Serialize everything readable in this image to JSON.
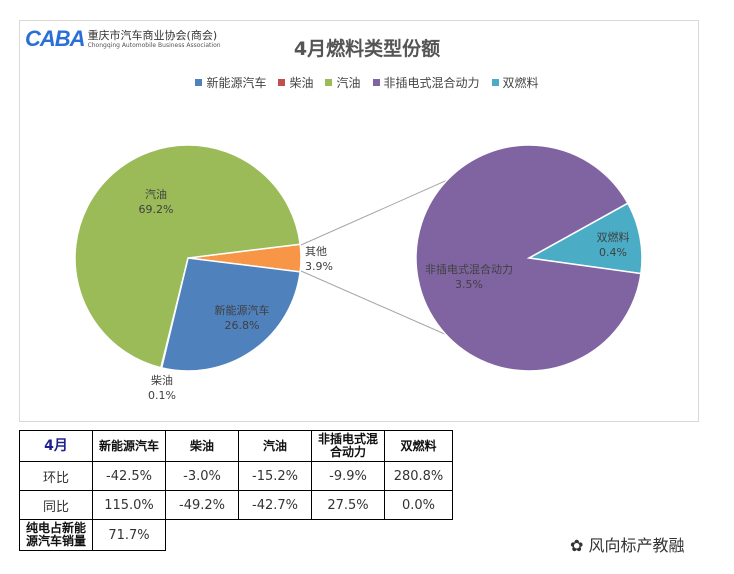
{
  "logo": {
    "mark": "CABA",
    "name_cn": "重庆市汽车商业协会(商会)",
    "name_en": "Chongqing Automobile Business Association"
  },
  "chart_data": [
    {
      "type": "pie",
      "title": "4月燃料类型份额",
      "legend": [
        "新能源汽车",
        "柴油",
        "汽油",
        "非插电式混合动力",
        "双燃料"
      ],
      "colors": {
        "新能源汽车": "#4f81bd",
        "柴油": "#c0504d",
        "汽油": "#9bbb59",
        "非插电式混合动力": "#8064a2",
        "双燃料": "#4bacc6",
        "其他": "#f79646"
      },
      "slices": [
        {
          "name": "其他",
          "value": 3.9,
          "label": "3.9%"
        },
        {
          "name": "新能源汽车",
          "value": 26.8,
          "label": "26.8%"
        },
        {
          "name": "柴油",
          "value": 0.1,
          "label": "0.1%"
        },
        {
          "name": "汽油",
          "value": 69.2,
          "label": "69.2%"
        }
      ]
    },
    {
      "type": "pie",
      "subset_of": "其他",
      "slices": [
        {
          "name": "双燃料",
          "value": 0.4,
          "label": "0.4%"
        },
        {
          "name": "非插电式混合动力",
          "value": 3.5,
          "label": "3.5%"
        }
      ]
    }
  ],
  "table": {
    "headers": [
      "4月",
      "新能源汽车",
      "柴油",
      "汽油",
      "非插电式混合动力",
      "双燃料"
    ],
    "rows": [
      [
        "环比",
        "-42.5%",
        "-3.0%",
        "-15.2%",
        "-9.9%",
        "280.8%"
      ],
      [
        "同比",
        "115.0%",
        "-49.2%",
        "-42.7%",
        "27.5%",
        "0.0%"
      ]
    ],
    "ev_share_label": "纯电占新能源汽车销量",
    "ev_share_value": "71.7%"
  },
  "watermark": "风向标产教融"
}
